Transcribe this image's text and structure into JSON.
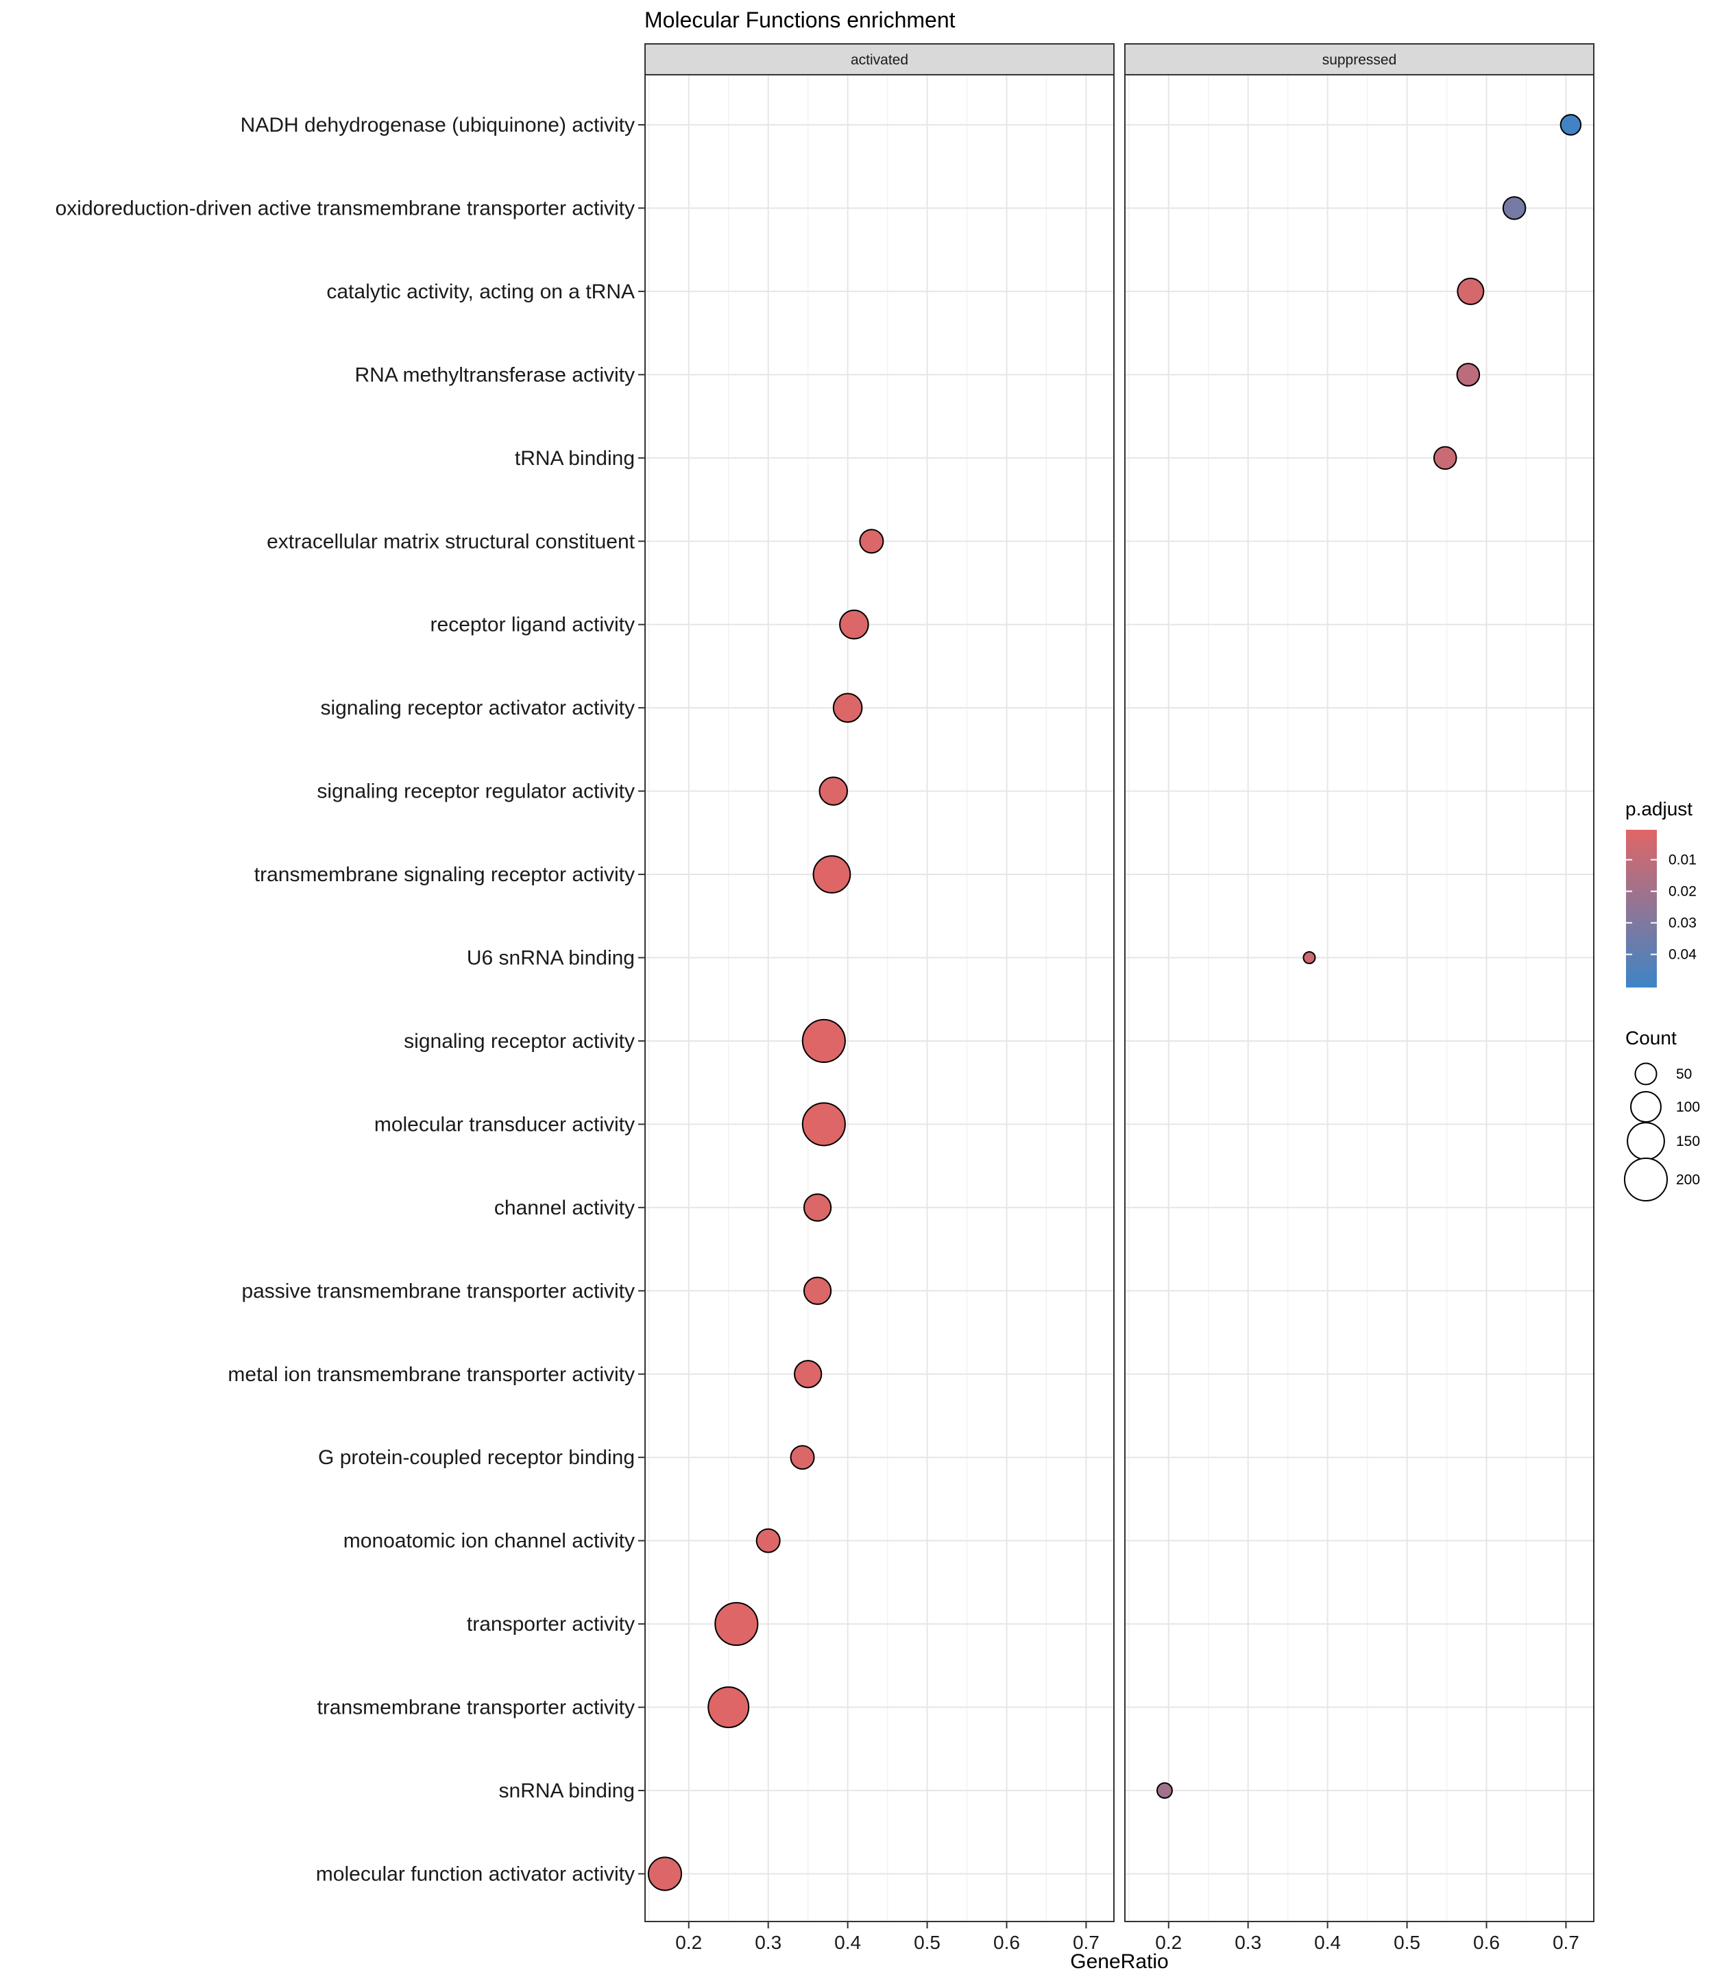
{
  "chart_data": {
    "type": "scatter",
    "title": "Molecular Functions enrichment",
    "xlabel": "GeneRatio",
    "ylabel": "",
    "xlim": [
      0.145,
      0.735
    ],
    "x_ticks": [
      0.2,
      0.3,
      0.4,
      0.5,
      0.6,
      0.7
    ],
    "x_tick_labels": [
      "0.2",
      "0.3",
      "0.4",
      "0.5",
      "0.6",
      "0.7"
    ],
    "grid": true,
    "facets": [
      "activated",
      "suppressed"
    ],
    "categories": [
      "NADH dehydrogenase (ubiquinone) activity",
      "oxidoreduction-driven active transmembrane transporter activity",
      "catalytic activity, acting on a tRNA",
      "RNA methyltransferase activity",
      "tRNA binding",
      "extracellular matrix structural constituent",
      "receptor ligand activity",
      "signaling receptor activator activity",
      "signaling receptor regulator activity",
      "transmembrane signaling receptor activity",
      "U6 snRNA binding",
      "signaling receptor activity",
      "molecular transducer activity",
      "channel activity",
      "passive transmembrane transporter activity",
      "metal ion transmembrane transporter activity",
      "G protein-coupled receptor binding",
      "monoatomic ion channel activity",
      "transporter activity",
      "transmembrane transporter activity",
      "snRNA binding",
      "molecular function activator activity"
    ],
    "points": [
      {
        "facet": "suppressed",
        "term": "NADH dehydrogenase (ubiquinone) activity",
        "gene_ratio": 0.706,
        "count": 45,
        "p_adjust": 0.049
      },
      {
        "facet": "suppressed",
        "term": "oxidoreduction-driven active transmembrane transporter activity",
        "gene_ratio": 0.635,
        "count": 55,
        "p_adjust": 0.033
      },
      {
        "facet": "suppressed",
        "term": "catalytic activity, acting on a tRNA",
        "gene_ratio": 0.58,
        "count": 75,
        "p_adjust": 0.004
      },
      {
        "facet": "suppressed",
        "term": "RNA methyltransferase activity",
        "gene_ratio": 0.577,
        "count": 55,
        "p_adjust": 0.012
      },
      {
        "facet": "suppressed",
        "term": "tRNA binding",
        "gene_ratio": 0.548,
        "count": 55,
        "p_adjust": 0.008
      },
      {
        "facet": "activated",
        "term": "extracellular matrix structural constituent",
        "gene_ratio": 0.43,
        "count": 60,
        "p_adjust": 0.002
      },
      {
        "facet": "activated",
        "term": "receptor ligand activity",
        "gene_ratio": 0.408,
        "count": 90,
        "p_adjust": 0.002
      },
      {
        "facet": "activated",
        "term": "signaling receptor activator activity",
        "gene_ratio": 0.4,
        "count": 90,
        "p_adjust": 0.002
      },
      {
        "facet": "activated",
        "term": "signaling receptor regulator activity",
        "gene_ratio": 0.382,
        "count": 85,
        "p_adjust": 0.002
      },
      {
        "facet": "activated",
        "term": "transmembrane signaling receptor activity",
        "gene_ratio": 0.38,
        "count": 150,
        "p_adjust": 0.001
      },
      {
        "facet": "suppressed",
        "term": "U6 snRNA binding",
        "gene_ratio": 0.377,
        "count": 15,
        "p_adjust": 0.006
      },
      {
        "facet": "activated",
        "term": "signaling receptor activity",
        "gene_ratio": 0.37,
        "count": 200,
        "p_adjust": 0.001
      },
      {
        "facet": "activated",
        "term": "molecular transducer activity",
        "gene_ratio": 0.37,
        "count": 200,
        "p_adjust": 0.001
      },
      {
        "facet": "activated",
        "term": "channel activity",
        "gene_ratio": 0.362,
        "count": 80,
        "p_adjust": 0.002
      },
      {
        "facet": "activated",
        "term": "passive transmembrane transporter activity",
        "gene_ratio": 0.362,
        "count": 80,
        "p_adjust": 0.002
      },
      {
        "facet": "activated",
        "term": "metal ion transmembrane transporter activity",
        "gene_ratio": 0.35,
        "count": 80,
        "p_adjust": 0.002
      },
      {
        "facet": "activated",
        "term": "G protein-coupled receptor binding",
        "gene_ratio": 0.343,
        "count": 60,
        "p_adjust": 0.002
      },
      {
        "facet": "activated",
        "term": "monoatomic ion channel activity",
        "gene_ratio": 0.3,
        "count": 60,
        "p_adjust": 0.002
      },
      {
        "facet": "activated",
        "term": "transporter activity",
        "gene_ratio": 0.26,
        "count": 200,
        "p_adjust": 0.001
      },
      {
        "facet": "activated",
        "term": "transmembrane transporter activity",
        "gene_ratio": 0.25,
        "count": 180,
        "p_adjust": 0.001
      },
      {
        "facet": "suppressed",
        "term": "snRNA binding",
        "gene_ratio": 0.195,
        "count": 25,
        "p_adjust": 0.02
      },
      {
        "facet": "activated",
        "term": "molecular function activator activity",
        "gene_ratio": 0.17,
        "count": 120,
        "p_adjust": 0.002
      }
    ],
    "color_legend": {
      "title": "p.adjust",
      "breaks": [
        0.01,
        0.02,
        0.03,
        0.04
      ],
      "labels": [
        "0.01",
        "0.02",
        "0.03",
        "0.04"
      ],
      "range": [
        0.0005,
        0.0505
      ],
      "low_color": "#e06666",
      "high_color": "#3d85c6",
      "placement": "right"
    },
    "size_legend": {
      "title": "Count",
      "breaks": [
        50,
        100,
        150,
        200
      ],
      "labels": [
        "50",
        "100",
        "150",
        "200"
      ],
      "placement": "right"
    }
  }
}
